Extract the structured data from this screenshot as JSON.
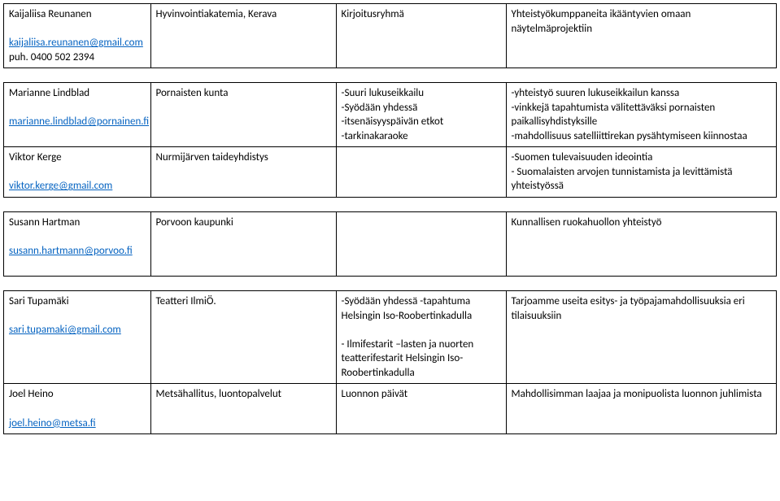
{
  "rows": [
    {
      "col1": {
        "name": "Kaijaliisa Reunanen",
        "email": "kaijaliisa.reunanen@gmail.com",
        "phone": "puh. 0400 502 2394"
      },
      "col2": "Hyvinvointiakatemia, Kerava",
      "col3": "Kirjoitusryhmä",
      "col4": "Yhteistyökumppaneita ikääntyvien omaan näytelmäprojektiin"
    },
    {
      "col1": {
        "name": "Marianne Lindblad",
        "email": "marianne.lindblad@pornainen.fi"
      },
      "col2": "Pornaisten kunta",
      "col3": "-Suuri lukuseikkailu\n-Syödään yhdessä\n-itsenäisyyspäivän etkot\n-tarkinakaraoke",
      "col4": "-yhteistyö suuren lukuseikkailun kanssa\n-vinkkejä tapahtumista välitettäväksi pornaisten paikallisyhdistyksille\n-mahdollisuus satelliittirekan pysähtymiseen kiinnostaa"
    },
    {
      "col1": {
        "name": "Viktor Kerge",
        "email": "viktor.kerge@gmail.com"
      },
      "col2": "Nurmijärven taideyhdistys",
      "col3": "",
      "col4": "-Suomen tulevaisuuden ideointia\n- Suomalaisten arvojen tunnistamista ja levittämistä yhteistyössä"
    },
    {
      "col1": {
        "name": "Susann Hartman",
        "email": "susann.hartmann@porvoo.fi"
      },
      "col2": "Porvoon kaupunki",
      "col3": "",
      "col4": "Kunnallisen ruokahuollon yhteistyö"
    },
    {
      "col1": {
        "name": "Sari Tupamäki",
        "email": "sari.tupamaki@gmail.com"
      },
      "col2": "Teatteri IlmiÖ.",
      "col3": "-Syödään yhdessä -tapahtuma Helsingin Iso-Roobertinkadulla\n\n- Ilmifestarit –lasten ja nuorten teatterifestarit Helsingin Iso-Roobertinkadulla",
      "col4": "Tarjoamme useita esitys- ja työpajamahdollisuuksia eri tilaisuuksiin"
    },
    {
      "col1": {
        "name": "Joel Heino",
        "email": "joel.heino@metsa.fi"
      },
      "col2": "Metsähallitus, luontopalvelut",
      "col3": "Luonnon päivät",
      "col4": "Mahdollisimman laajaa ja monipuolista luonnon juhlimista"
    }
  ]
}
